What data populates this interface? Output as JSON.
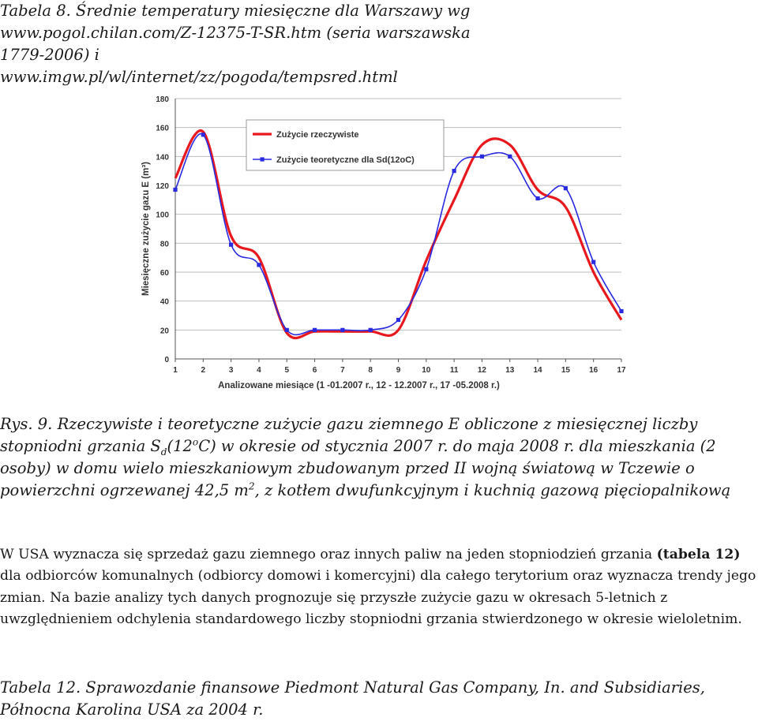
{
  "top_caption": {
    "line1": "Tabela 8. Średnie temperatury miesięczne dla Warszawy wg",
    "line2": "www.pogol.chilan.com/Z-12375-T-SR.htm (seria warszawska 1779-2006) i",
    "line3": "www.imgw.pl/wl/internet/zz/pogoda/tempsred.html"
  },
  "figure_caption": {
    "part1": "Rys. 9. Rzeczywiste i teoretyczne zużycie gazu ziemnego E obliczone z miesięcznej liczby stopniodni grzania S",
    "sub": "d",
    "part2": "(12",
    "sup1": "o",
    "part3": "C) w okresie od stycznia 2007 r. do maja 2008 r.  dla mieszkania (2 osoby)  w domu wielo mieszkaniowym zbudowanym przed II wojną światową w Tczewie o powierzchni ogrzewanej 42,5 m",
    "sup2": "2",
    "part4": ", z kotłem dwufunkcyjnym i kuchnią gazową pięciopalnikową"
  },
  "paragraph": {
    "text1": "W USA wyznacza się sprzedaż gazu ziemnego oraz innych paliw na jeden stopniodzień grzania ",
    "bold": "(tabela 12)",
    "text2": " dla odbiorców komunalnych (odbiorcy domowi i komercyjni) dla całego terytorium oraz wyznacza trendy jego zmian. Na bazie analizy tych danych prognozuje się przyszłe zużycie gazu w okresach 5-letnich z uwzględnieniem odchylenia standardowego liczby stopniodni grzania stwierdzonego w okresie wieloletnim."
  },
  "bottom_caption": "Tabela 12. Sprawozdanie finansowe Piedmont Natural Gas Company, In. and Subsidiaries, Północna Karolina USA za 2004 r.",
  "chart_data": {
    "type": "line",
    "xlabel": "Analizowane miesiące (1 -01.2007 r., 12 - 12.2007 r., 17 -05.2008 r.)",
    "ylabel": "Miesięczne zużycie gazu E (m³)",
    "x": [
      1,
      2,
      3,
      4,
      5,
      6,
      7,
      8,
      9,
      10,
      11,
      12,
      13,
      14,
      15,
      16,
      17
    ],
    "ylim": [
      0,
      180
    ],
    "yticks": [
      0,
      20,
      40,
      60,
      80,
      100,
      120,
      140,
      160,
      180
    ],
    "grid": true,
    "legend_position": "top-right",
    "series": [
      {
        "name": "Zużycie rzeczywiste",
        "color": "#e8191e",
        "markers": false,
        "values": [
          125,
          157,
          85,
          70,
          18,
          19,
          19,
          19,
          20,
          68,
          110,
          148,
          148,
          117,
          105,
          60,
          27
        ]
      },
      {
        "name": "Zużycie teoretyczne dla Sd(12oC)",
        "color": "#2a2ae0",
        "markers": true,
        "values": [
          117,
          155,
          79,
          65,
          20,
          20,
          20,
          20,
          27,
          62,
          130,
          140,
          140,
          111,
          118,
          67,
          33
        ]
      }
    ]
  }
}
